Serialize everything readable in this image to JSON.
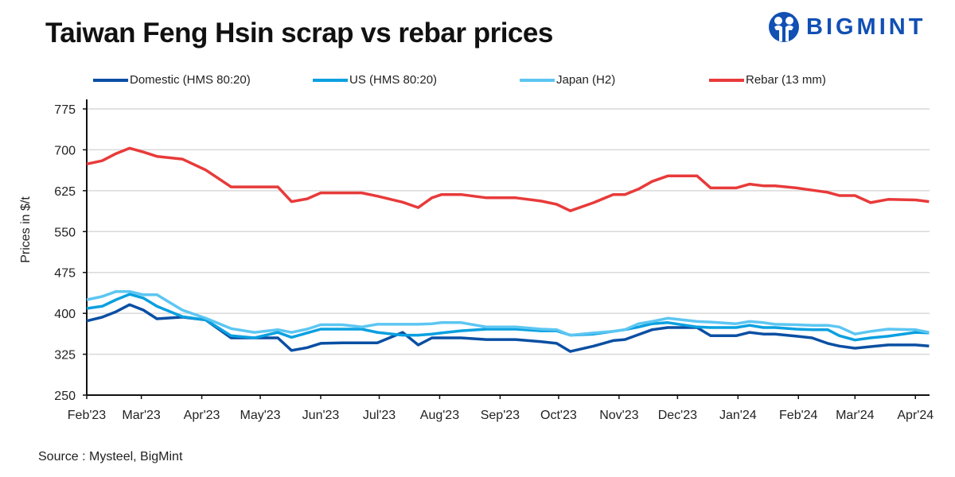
{
  "logo_text": "BIGMINT",
  "source": "Source : Mysteel, BigMint",
  "chart_data": {
    "type": "line",
    "title": "Taiwan Feng Hsin scrap vs rebar prices",
    "ylabel": "Prices in $/t",
    "xlabel": "",
    "ylim": [
      250,
      775
    ],
    "yticks": [
      250,
      325,
      400,
      475,
      550,
      625,
      700,
      775
    ],
    "xticks": [
      "Feb'23",
      "Mar'23",
      "Apr'23",
      "May'23",
      "Jun'23",
      "Jul'23",
      "Aug'23",
      "Sep'23",
      "Oct'23",
      "Nov'23",
      "Dec'23",
      "Jan'24",
      "Feb'24",
      "Mar'24",
      "Apr'24"
    ],
    "xtick_dates": [
      "2023-02-01",
      "2023-03-01",
      "2023-04-01",
      "2023-05-01",
      "2023-06-01",
      "2023-07-01",
      "2023-08-01",
      "2023-09-01",
      "2023-10-01",
      "2023-11-01",
      "2023-12-01",
      "2024-01-01",
      "2024-02-01",
      "2024-03-01",
      "2024-04-01"
    ],
    "grid": true,
    "legend_position": "top",
    "x": [
      "2023-02-01",
      "2023-02-09",
      "2023-02-16",
      "2023-02-23",
      "2023-03-02",
      "2023-03-09",
      "2023-03-22",
      "2023-04-03",
      "2023-04-16",
      "2023-04-28",
      "2023-05-10",
      "2023-05-17",
      "2023-05-25",
      "2023-06-01",
      "2023-06-12",
      "2023-06-22",
      "2023-06-30",
      "2023-07-13",
      "2023-07-21",
      "2023-07-28",
      "2023-08-02",
      "2023-08-12",
      "2023-08-25",
      "2023-09-09",
      "2023-09-22",
      "2023-09-30",
      "2023-10-07",
      "2023-10-19",
      "2023-10-29",
      "2023-11-04",
      "2023-11-11",
      "2023-11-18",
      "2023-11-26",
      "2023-12-11",
      "2023-12-18",
      "2023-12-31",
      "2024-01-07",
      "2024-01-14",
      "2024-01-20",
      "2024-01-31",
      "2024-02-08",
      "2024-02-16",
      "2024-02-22",
      "2024-03-01",
      "2024-03-09",
      "2024-03-18",
      "2024-04-01",
      "2024-04-08"
    ],
    "series": [
      {
        "name": "Domestic (HMS 80:20)",
        "color": "#0a4fa3",
        "values": [
          386,
          393,
          403,
          416,
          406,
          390,
          393,
          388,
          355,
          355,
          355,
          332,
          337,
          345,
          346,
          346,
          346,
          365,
          342,
          355,
          355,
          355,
          352,
          352,
          348,
          345,
          330,
          340,
          350,
          352,
          361,
          370,
          374,
          374,
          359,
          359,
          365,
          362,
          362,
          358,
          355,
          345,
          340,
          336,
          339,
          342,
          342,
          340
        ]
      },
      {
        "name": "US (HMS 80:20)",
        "color": "#0aa0e0",
        "values": [
          409,
          413,
          425,
          435,
          428,
          413,
          394,
          388,
          359,
          355,
          365,
          356,
          364,
          371,
          371,
          371,
          365,
          360,
          360,
          362,
          364,
          368,
          371,
          371,
          368,
          368,
          360,
          362,
          367,
          370,
          375,
          381,
          383,
          375,
          374,
          374,
          378,
          374,
          374,
          371,
          370,
          370,
          359,
          351,
          355,
          358,
          365,
          364
        ]
      },
      {
        "name": "Japan (H2)",
        "color": "#5cc6f2",
        "values": [
          425,
          431,
          440,
          440,
          434,
          434,
          406,
          391,
          372,
          365,
          370,
          365,
          371,
          379,
          379,
          375,
          380,
          380,
          380,
          381,
          383,
          383,
          375,
          375,
          371,
          370,
          360,
          364,
          367,
          370,
          381,
          385,
          391,
          385,
          384,
          381,
          385,
          383,
          380,
          379,
          378,
          378,
          375,
          362,
          367,
          371,
          370,
          365
        ]
      },
      {
        "name": "Rebar (13 mm)",
        "color": "#e83a3a",
        "values": [
          674,
          680,
          693,
          703,
          696,
          688,
          683,
          663,
          632,
          632,
          632,
          605,
          610,
          621,
          621,
          621,
          615,
          604,
          594,
          612,
          618,
          618,
          612,
          612,
          606,
          600,
          588,
          603,
          618,
          618,
          628,
          642,
          652,
          652,
          630,
          630,
          637,
          634,
          634,
          630,
          626,
          622,
          616,
          616,
          603,
          609,
          608,
          605
        ]
      }
    ]
  }
}
